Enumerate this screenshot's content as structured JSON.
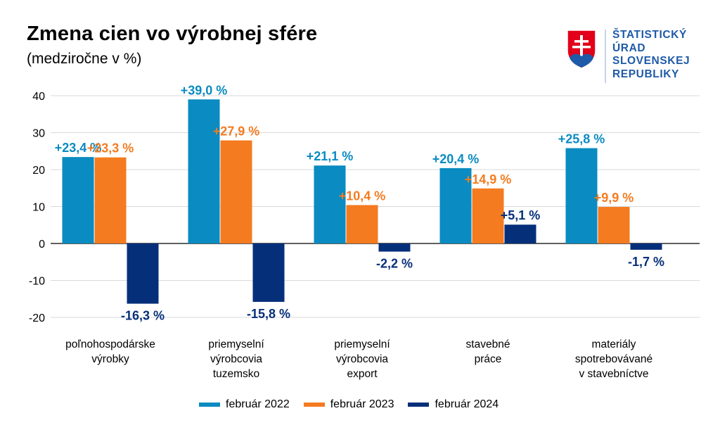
{
  "header": {
    "title": "Zmena cien vo výrobnej sfére",
    "subtitle": "(medziročne v %)"
  },
  "logo": {
    "lines": [
      "ŠTATISTICKÝ",
      "ÚRAD",
      "SLOVENSKEJ",
      "REPUBLIKY"
    ],
    "text_color": "#1e5aa8",
    "shield_red": "#e2001a",
    "shield_blue": "#1e5aa8"
  },
  "chart_data": {
    "type": "bar",
    "title": "Zmena cien vo výrobnej sfére",
    "subtitle": "(medziročne v %)",
    "categories": [
      [
        "poľnohospodárske",
        "výrobky"
      ],
      [
        "priemyselní",
        "výrobcovia",
        "tuzemsko"
      ],
      [
        "priemyselní",
        "výrobcovia",
        "export"
      ],
      [
        "stavebné",
        "práce"
      ],
      [
        "materiály",
        "spotrebovávané",
        "v stavebníctve"
      ]
    ],
    "series": [
      {
        "name": "február 2022",
        "color": "#0a8bc1",
        "values": [
          23.4,
          39.0,
          21.1,
          20.4,
          25.8
        ],
        "labels": [
          "+23,4 %",
          "+39,0 %",
          "+21,1 %",
          "+20,4 %",
          "+25,8 %"
        ]
      },
      {
        "name": "február 2023",
        "color": "#f47b20",
        "values": [
          23.3,
          27.9,
          10.4,
          14.9,
          9.9
        ],
        "labels": [
          "+23,3 %",
          "+27,9 %",
          "+10,4 %",
          "+14,9 %",
          "+9,9 %"
        ]
      },
      {
        "name": "február 2024",
        "color": "#062f7a",
        "values": [
          -16.3,
          -15.8,
          -2.2,
          5.1,
          -1.7
        ],
        "labels": [
          "-16,3 %",
          "-15,8 %",
          "-2,2 %",
          "+5,1 %",
          "-1,7 %"
        ]
      }
    ],
    "yticks": [
      40,
      30,
      20,
      10,
      0,
      -10,
      -20
    ],
    "ylim": [
      -20,
      40
    ],
    "grid": true,
    "legend_position": "bottom"
  }
}
